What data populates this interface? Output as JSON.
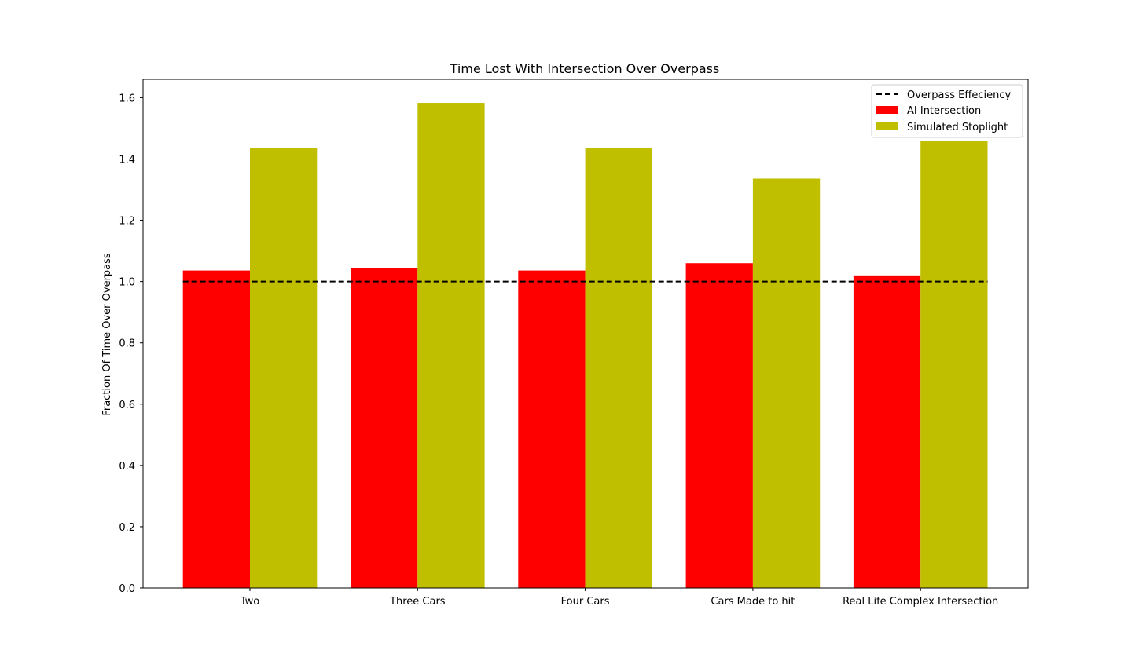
{
  "chart_data": {
    "type": "bar",
    "title": "Time Lost With Intersection Over Overpass",
    "xlabel": "",
    "ylabel": "Fraction Of Time Over Overpass",
    "categories": [
      "Two",
      "Three Cars",
      "Four Cars",
      "Cars Made to hit",
      "Real Life Complex Intersection"
    ],
    "series": [
      {
        "name": "AI Intersection",
        "color": "#ff0000",
        "values": [
          1.036,
          1.044,
          1.036,
          1.06,
          1.02
        ]
      },
      {
        "name": "Simulated Stoplight",
        "color": "#bfbf00",
        "values": [
          1.437,
          1.583,
          1.437,
          1.336,
          1.46
        ]
      }
    ],
    "reference_line": {
      "name": "Overpass Effeciency",
      "y": 1.0,
      "style": "dashed",
      "color": "#000000"
    },
    "ylim": [
      0,
      1.66
    ],
    "yticks": [
      "0.0",
      "0.2",
      "0.4",
      "0.6",
      "0.8",
      "1.0",
      "1.2",
      "1.4",
      "1.6"
    ],
    "legend": {
      "placement": "top-right",
      "entries": [
        "Overpass Effeciency",
        "AI Intersection",
        "Simulated Stoplight"
      ]
    },
    "grid": false
  }
}
